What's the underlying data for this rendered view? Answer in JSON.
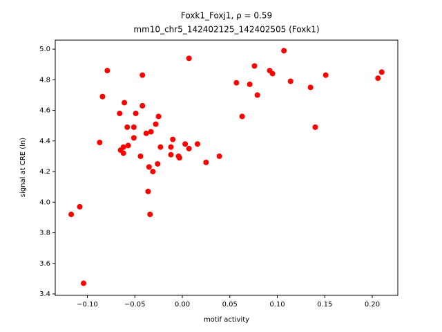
{
  "chart_data": {
    "type": "scatter",
    "title": "Foxk1_Foxj1, ρ = 0.59",
    "subtitle": "mm10_chr5_142402125_142402505 (Foxk1)",
    "x_label": "motif activity",
    "y_label": "signal at CRE (ln)",
    "color": "#ff0000",
    "xlim": [
      -0.1338,
      0.2269
    ],
    "ylim": [
      3.391,
      5.059
    ],
    "xticks": [
      {
        "value": -0.1,
        "label": "−0.10"
      },
      {
        "value": -0.05,
        "label": "−0.05"
      },
      {
        "value": 0,
        "label": "0.00"
      },
      {
        "value": 0.05,
        "label": "0.05"
      },
      {
        "value": 0.1,
        "label": "0.10"
      },
      {
        "value": 0.15,
        "label": "0.15"
      },
      {
        "value": 0.2,
        "label": "0.20"
      }
    ],
    "yticks": [
      {
        "value": 3.4,
        "label": "3.4"
      },
      {
        "value": 3.6,
        "label": "3.6"
      },
      {
        "value": 3.8,
        "label": "3.8"
      },
      {
        "value": 4.0,
        "label": "4.0"
      },
      {
        "value": 4.2,
        "label": "4.2"
      },
      {
        "value": 4.4,
        "label": "4.4"
      },
      {
        "value": 4.6,
        "label": "4.6"
      },
      {
        "value": 4.8,
        "label": "4.8"
      },
      {
        "value": 5.0,
        "label": "5.0"
      }
    ],
    "x": [
      -0.117,
      -0.108,
      -0.104,
      -0.087,
      -0.084,
      -0.079,
      -0.066,
      -0.065,
      -0.062,
      -0.062,
      -0.061,
      -0.058,
      -0.057,
      -0.051,
      -0.051,
      -0.049,
      -0.044,
      -0.042,
      -0.042,
      -0.038,
      -0.036,
      -0.035,
      -0.034,
      -0.033,
      -0.031,
      -0.028,
      -0.026,
      -0.025,
      -0.023,
      -0.012,
      -0.012,
      -0.01,
      -0.004,
      -0.003,
      0.003,
      0.007,
      0.007,
      0.016,
      0.025,
      0.039,
      0.057,
      0.063,
      0.071,
      0.076,
      0.079,
      0.092,
      0.095,
      0.107,
      0.114,
      0.135,
      0.14,
      0.151,
      0.206,
      0.21
    ],
    "values": [
      3.92,
      3.97,
      3.47,
      4.39,
      4.69,
      4.86,
      4.58,
      4.34,
      4.36,
      4.32,
      4.65,
      4.49,
      4.37,
      4.49,
      4.42,
      4.58,
      4.3,
      4.83,
      4.63,
      4.45,
      4.07,
      4.23,
      3.92,
      4.46,
      4.2,
      4.51,
      4.25,
      4.56,
      4.36,
      4.31,
      4.36,
      4.41,
      4.3,
      4.29,
      4.38,
      4.35,
      4.94,
      4.38,
      4.26,
      4.3,
      4.78,
      4.56,
      4.77,
      4.89,
      4.7,
      4.86,
      4.84,
      4.99,
      4.79,
      4.75,
      4.49,
      4.83,
      4.81,
      4.85
    ]
  }
}
